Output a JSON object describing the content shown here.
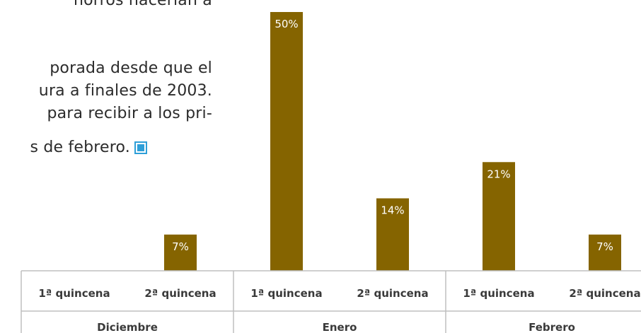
{
  "paragraph": {
    "lines": [
      "horros hacerían a",
      "porada desde que el",
      "ura a finales de 2003.",
      "para recibir a los pri-",
      "s de febrero."
    ],
    "end_marker_icon": "blue-square-icon"
  },
  "chart_data": {
    "type": "bar",
    "bar_color": "#856400",
    "data_label_color": "#ffffff",
    "categories": [
      "1ª quincena",
      "2ª quincena",
      "1ª quincena",
      "2ª quincena",
      "1ª quincena",
      "2ª quincena"
    ],
    "groups": [
      {
        "label": "Diciembre",
        "categories": [
          "1ª quincena",
          "2ª quincena"
        ]
      },
      {
        "label": "Enero",
        "categories": [
          "1ª quincena",
          "2ª quincena"
        ]
      },
      {
        "label": "Febrero",
        "categories": [
          "1ª quincena",
          "2ª quincena"
        ]
      }
    ],
    "values": [
      0,
      7,
      50,
      14,
      21,
      7
    ],
    "data_labels": [
      "",
      "7%",
      "50%",
      "14%",
      "21%",
      "7%"
    ],
    "unit": "%",
    "ylim": [
      0,
      50
    ],
    "grid": false,
    "legend": "none",
    "title": "",
    "xlabel": "",
    "ylabel": ""
  }
}
